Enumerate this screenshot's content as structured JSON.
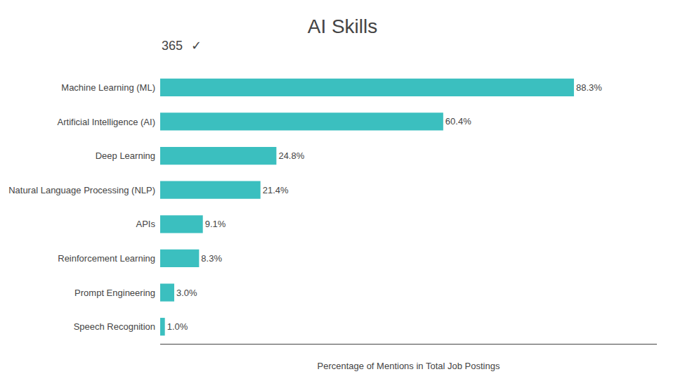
{
  "chart_data": {
    "type": "bar",
    "orientation": "horizontal",
    "title": "AI Skills",
    "x_label": "Percentage of Mentions in Total Job Postings",
    "categories": [
      "Machine Learning (ML)",
      "Artificial Intelligence (AI)",
      "Deep Learning",
      "Natural Language Processing (NLP)",
      "APIs",
      "Reinforcement Learning",
      "Prompt Engineering",
      "Speech Recognition"
    ],
    "values": [
      88.3,
      60.4,
      24.8,
      21.4,
      9.1,
      8.3,
      3.0,
      1.0
    ],
    "value_labels": [
      "88.3%",
      "60.4%",
      "24.8%",
      "21.4%",
      "9.1%",
      "8.3%",
      "3.0%",
      "1.0%"
    ],
    "data_labels": true,
    "color": "#3bbfbf",
    "xlim": [
      0,
      106
    ],
    "tick_labels": "y",
    "grid": false,
    "annotations": [
      "365",
      "✓"
    ]
  }
}
